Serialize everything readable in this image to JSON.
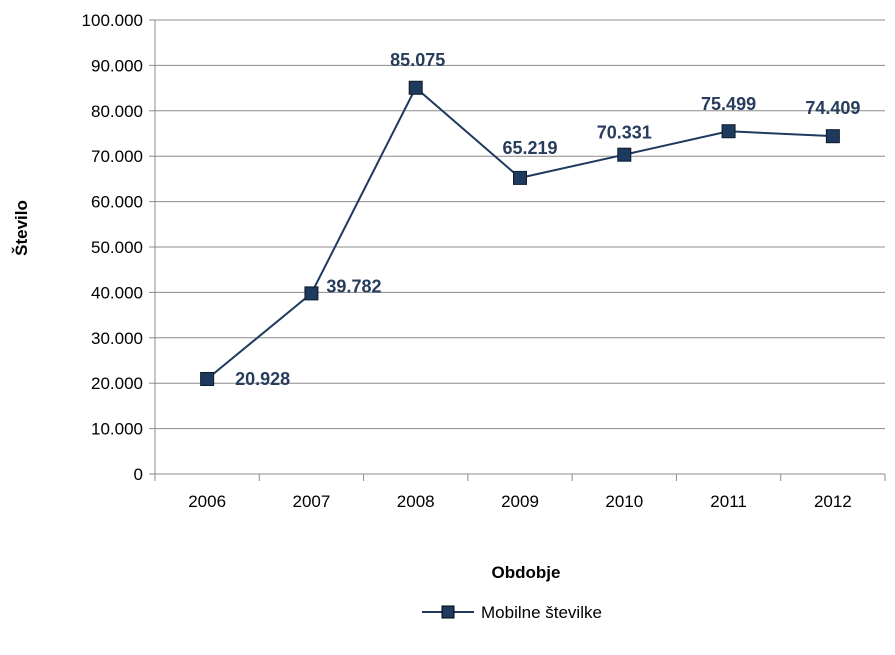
{
  "chart_data": {
    "type": "line",
    "categories": [
      "2006",
      "2007",
      "2008",
      "2009",
      "2010",
      "2011",
      "2012"
    ],
    "series": [
      {
        "name": "Mobilne številke",
        "values": [
          20928,
          39782,
          85075,
          65219,
          70331,
          75499,
          74409
        ],
        "data_labels": [
          "20.928",
          "39.782",
          "85.075",
          "65.219",
          "70.331",
          "75.499",
          "74.409"
        ],
        "color": "#1f3a5f",
        "marker": "square"
      }
    ],
    "title": "",
    "xlabel": "Obdobje",
    "ylabel": "Število",
    "ylim": [
      0,
      100000
    ],
    "y_ticks": [
      0,
      10000,
      20000,
      30000,
      40000,
      50000,
      60000,
      70000,
      80000,
      90000,
      100000
    ],
    "y_tick_labels": [
      "0",
      "10.000",
      "20.000",
      "30.000",
      "40.000",
      "50.000",
      "60.000",
      "70.000",
      "80.000",
      "90.000",
      "100.000"
    ],
    "grid": true,
    "legend_position": "bottom",
    "gridline_color": "#8c8c8c",
    "axis_color": "#8c8c8c",
    "label_color": "#283c5c"
  }
}
